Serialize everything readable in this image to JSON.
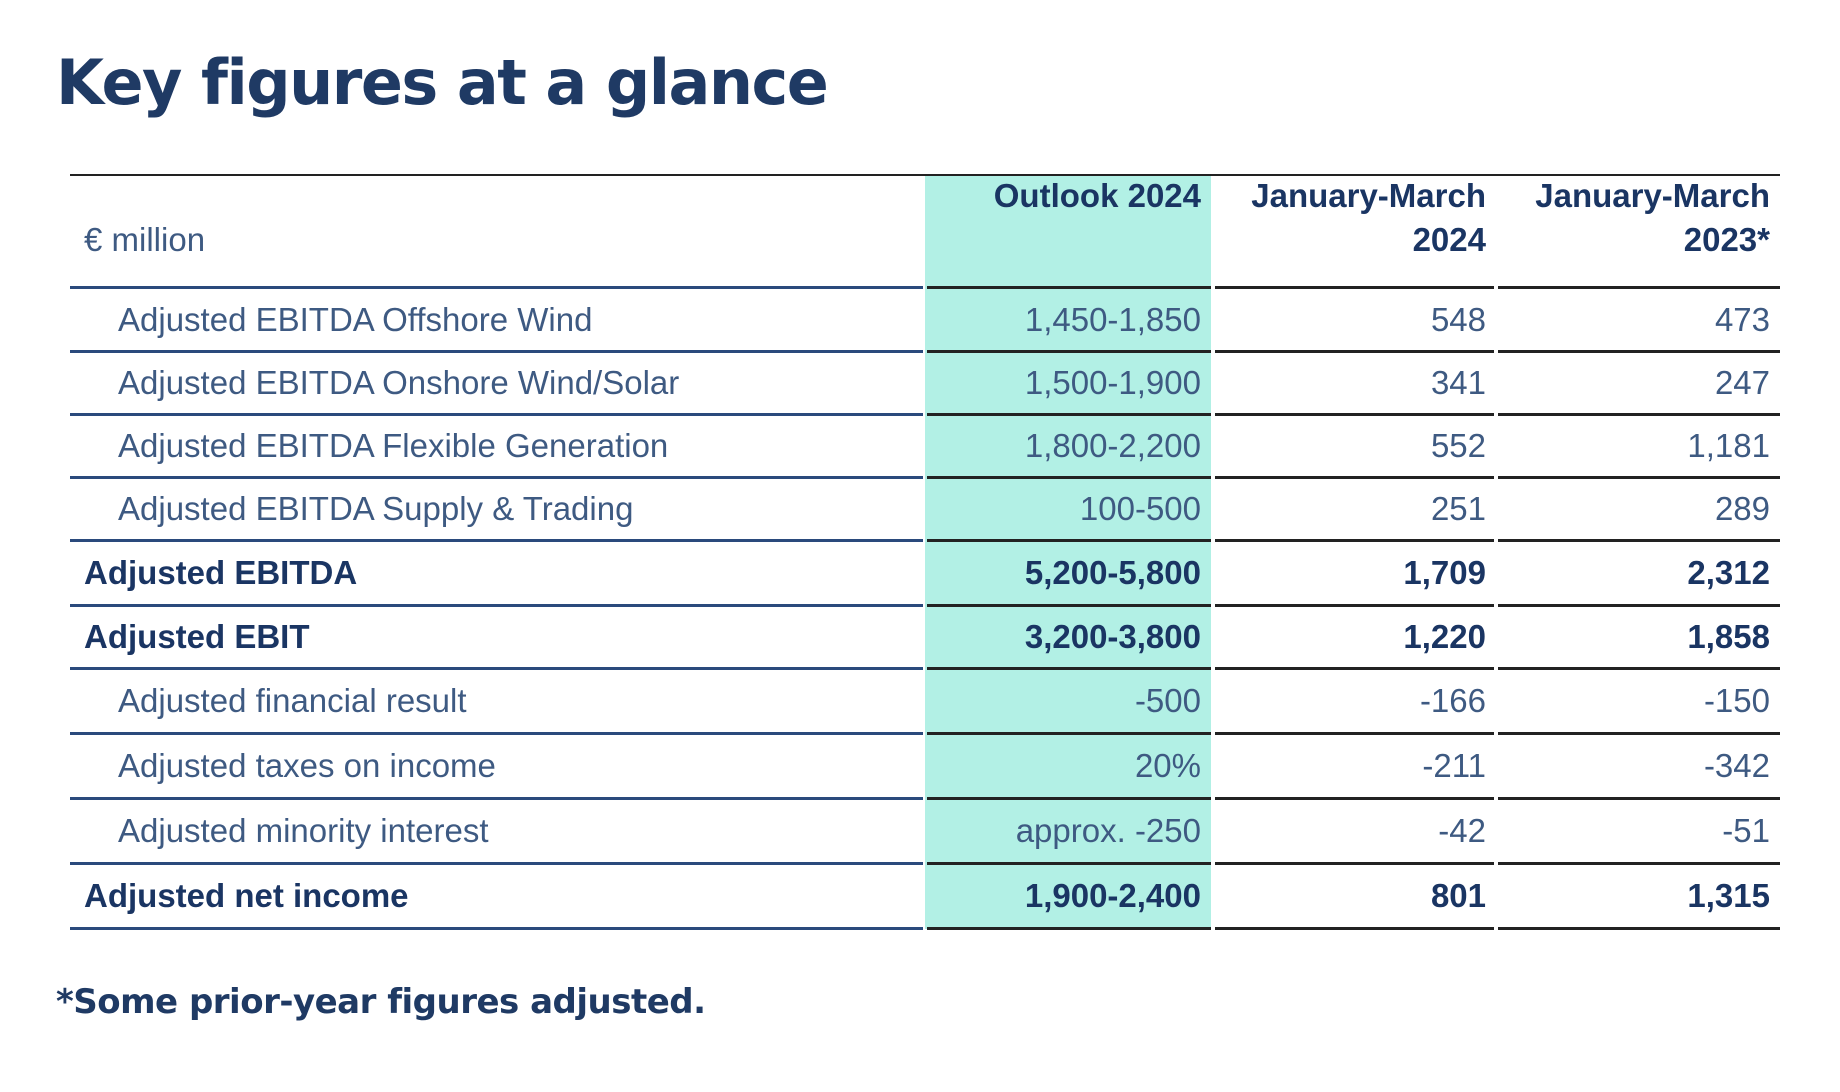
{
  "page": {
    "title": "Key figures at a glance",
    "footnote": "*Some prior-year figures adjusted."
  },
  "table": {
    "unit_label": "€ million",
    "columns": [
      {
        "line1": "Outlook 2024",
        "line2": ""
      },
      {
        "line1": "January-March",
        "line2": "2024"
      },
      {
        "line1": "January-March",
        "line2": "2023*"
      }
    ],
    "rows": [
      {
        "label": "Adjusted EBITDA Offshore Wind",
        "outlook": "1,450-1,850",
        "q1_2024": "548",
        "q1_2023": "473",
        "bold": false
      },
      {
        "label": "Adjusted EBITDA Onshore Wind/Solar",
        "outlook": "1,500-1,900",
        "q1_2024": "341",
        "q1_2023": "247",
        "bold": false
      },
      {
        "label": "Adjusted EBITDA Flexible Generation",
        "outlook": "1,800-2,200",
        "q1_2024": "552",
        "q1_2023": "1,181",
        "bold": false
      },
      {
        "label": "Adjusted EBITDA Supply & Trading",
        "outlook": "100-500",
        "q1_2024": "251",
        "q1_2023": "289",
        "bold": false
      },
      {
        "label": "Adjusted EBITDA",
        "outlook": "5,200-5,800",
        "q1_2024": "1,709",
        "q1_2023": "2,312",
        "bold": true
      },
      {
        "label": "Adjusted EBIT",
        "outlook": "3,200-3,800",
        "q1_2024": "1,220",
        "q1_2023": "1,858",
        "bold": true
      },
      {
        "label": "Adjusted financial result",
        "outlook": "-500",
        "q1_2024": "-166",
        "q1_2023": "-150",
        "bold": false
      },
      {
        "label": "Adjusted taxes on income",
        "outlook": "20%",
        "q1_2024": "-211",
        "q1_2023": "-342",
        "bold": false
      },
      {
        "label": "Adjusted minority interest",
        "outlook": "approx. -250",
        "q1_2024": "-42",
        "q1_2023": "-51",
        "bold": false
      },
      {
        "label": "Adjusted net income",
        "outlook": "1,900-2,400",
        "q1_2024": "801",
        "q1_2023": "1,315",
        "bold": true
      }
    ]
  },
  "colors": {
    "title": "#1f3a64",
    "outlook_highlight": "#b2f0e5",
    "rule_blue": "#2a4a7c",
    "rule_black": "#222222"
  }
}
